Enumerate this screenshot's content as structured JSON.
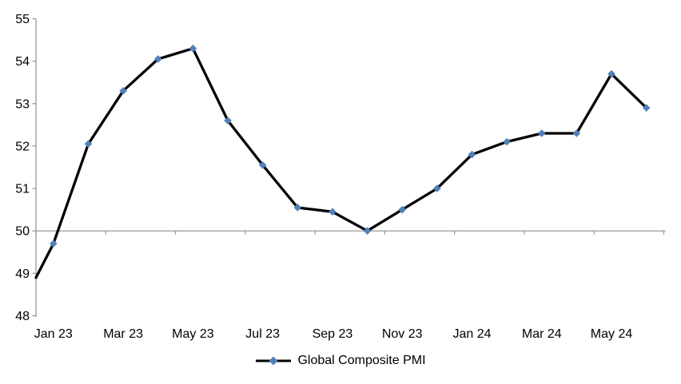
{
  "chart_data": {
    "type": "line",
    "title": "",
    "categories": [
      "Jan 23",
      "Feb 23",
      "Mar 23",
      "Apr 23",
      "May 23",
      "Jun 23",
      "Jul 23",
      "Aug 23",
      "Sep 23",
      "Oct 23",
      "Nov 23",
      "Dec 23",
      "Jan 24",
      "Feb 24",
      "Mar 24",
      "Apr 24",
      "May 24",
      "Jun 24"
    ],
    "series": [
      {
        "name": "Global Composite PMI",
        "values": [
          49.7,
          52.05,
          53.3,
          54.05,
          54.3,
          52.6,
          51.55,
          50.55,
          50.45,
          50.0,
          50.5,
          51.0,
          51.8,
          52.1,
          52.3,
          52.3,
          53.7,
          52.9
        ]
      }
    ],
    "entry_at_left_edge_value": 48.9,
    "x_tick_labels": [
      "Jan 23",
      "Mar 23",
      "May 23",
      "Jul 23",
      "Sep 23",
      "Nov 23",
      "Jan 24",
      "Mar 24",
      "May 24"
    ],
    "x_tick_interval": 2,
    "y_ticks": [
      48,
      49,
      50,
      51,
      52,
      53,
      54,
      55
    ],
    "ylim": [
      48,
      55
    ],
    "x_axis_crosses_at": 50,
    "grid": "off",
    "legend": {
      "position": "bottom",
      "label": "Global Composite PMI"
    },
    "marker_shape": "diamond",
    "colors": {
      "line": "#000000",
      "marker": "#4F81BD",
      "axis": "#999999",
      "text": "#000000",
      "background": "#FFFFFF"
    }
  }
}
